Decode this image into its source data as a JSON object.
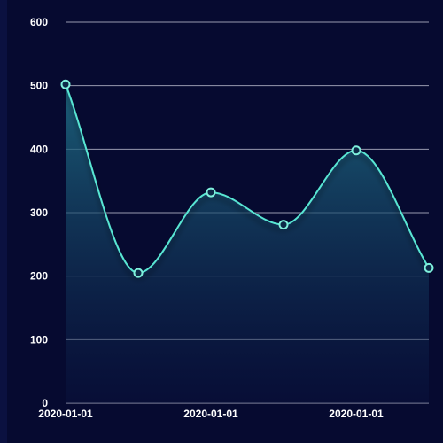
{
  "chart_data": {
    "type": "area",
    "title": "",
    "xlabel": "",
    "ylabel": "",
    "x": [
      "2020-01-01",
      "",
      "2020-01-01",
      "",
      "2020-01-01",
      ""
    ],
    "series": [
      {
        "values": [
          502,
          205,
          332,
          281,
          398,
          213
        ]
      }
    ],
    "ylim": [
      0,
      600
    ],
    "yticks": [
      "0",
      "100",
      "200",
      "300",
      "400",
      "500",
      "600"
    ],
    "xtick_labels": [
      "2020-01-01",
      "2020-01-01",
      "2020-01-01"
    ],
    "grid": true,
    "smooth": true,
    "colors": {
      "background": "#060a30",
      "line": "#59e6d3",
      "marker_fill": "#0d2a48",
      "marker_stroke": "#7ff0dc",
      "area_top": "#1f6f86",
      "area_bottom": "#0a1440",
      "grid": "#c9cbd9",
      "text": "#ffffff"
    }
  }
}
